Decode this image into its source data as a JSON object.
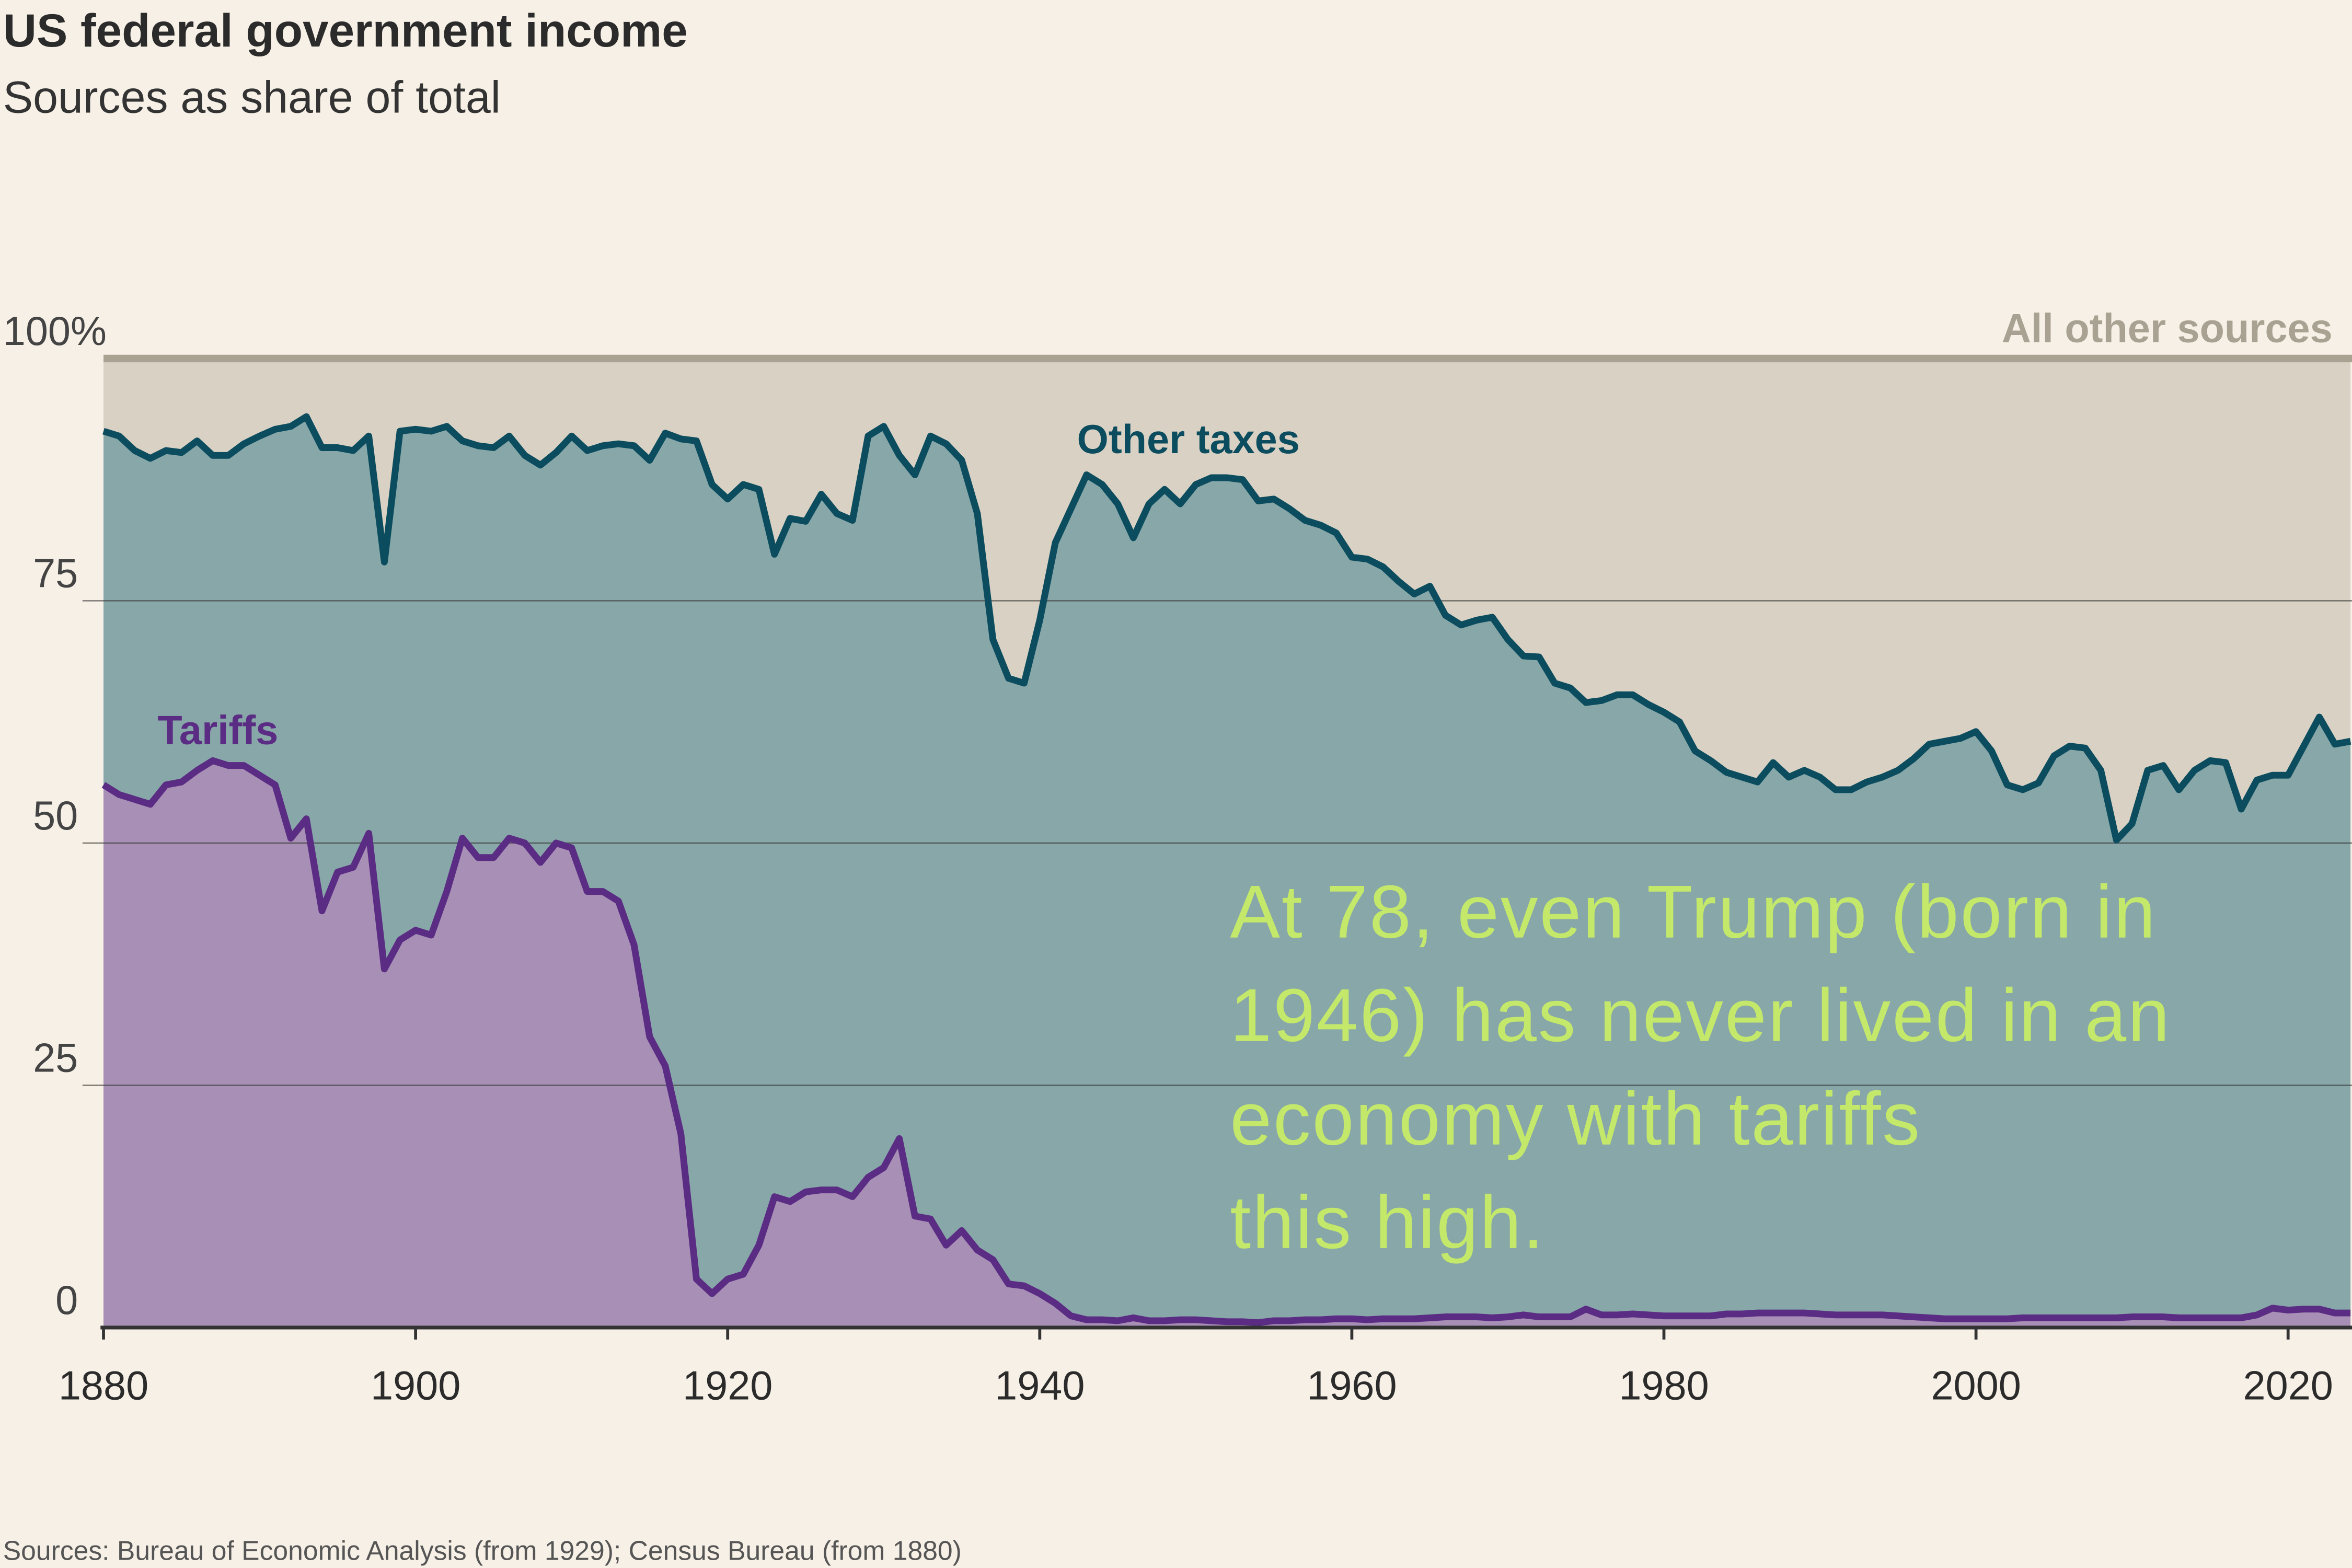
{
  "chart_data": {
    "type": "stacked-area",
    "title": "US federal government income",
    "subtitle": "Sources as share of total",
    "source": "Sources: Bureau of Economic Analysis (from 1929); Census Bureau (from 1880)",
    "annotation": [
      "At 78, even Trump (born in",
      "1946) has never lived in an",
      "economy with tariffs",
      "this high."
    ],
    "annotation_color": "#c4e96a",
    "xlim": [
      1880,
      2024
    ],
    "xticks": [
      1880,
      1900,
      1920,
      1940,
      1960,
      1980,
      2000,
      2020
    ],
    "ylim": [
      0,
      100
    ],
    "yticks": [
      0,
      25,
      50,
      75,
      {
        "value": 100,
        "label": "100%"
      }
    ],
    "grid": true,
    "remainder": {
      "name": "All other sources",
      "color": "#d9d1c3",
      "label_color": "#a9a292"
    },
    "x": [
      1880,
      1881,
      1882,
      1883,
      1884,
      1885,
      1886,
      1887,
      1888,
      1889,
      1890,
      1891,
      1892,
      1893,
      1894,
      1895,
      1896,
      1897,
      1898,
      1899,
      1900,
      1901,
      1902,
      1903,
      1904,
      1905,
      1906,
      1907,
      1908,
      1909,
      1910,
      1911,
      1912,
      1913,
      1914,
      1915,
      1916,
      1917,
      1918,
      1919,
      1920,
      1921,
      1922,
      1923,
      1924,
      1925,
      1926,
      1927,
      1928,
      1929,
      1930,
      1931,
      1932,
      1933,
      1934,
      1935,
      1936,
      1937,
      1938,
      1939,
      1940,
      1941,
      1942,
      1943,
      1944,
      1945,
      1946,
      1947,
      1948,
      1949,
      1950,
      1951,
      1952,
      1953,
      1954,
      1955,
      1956,
      1957,
      1958,
      1959,
      1960,
      1961,
      1962,
      1963,
      1964,
      1965,
      1966,
      1967,
      1968,
      1969,
      1970,
      1971,
      1972,
      1973,
      1974,
      1975,
      1976,
      1977,
      1978,
      1979,
      1980,
      1981,
      1982,
      1983,
      1984,
      1985,
      1986,
      1987,
      1988,
      1989,
      1990,
      1991,
      1992,
      1993,
      1994,
      1995,
      1996,
      1997,
      1998,
      1999,
      2000,
      2001,
      2002,
      2003,
      2004,
      2005,
      2006,
      2007,
      2008,
      2009,
      2010,
      2011,
      2012,
      2013,
      2014,
      2015,
      2016,
      2017,
      2018,
      2019,
      2020,
      2021,
      2022,
      2023,
      2024
    ],
    "series": [
      {
        "name": "Tariffs",
        "color": "#a78fb5",
        "line_color": "#5b2c83",
        "values": [
          56,
          55,
          54.5,
          54,
          56,
          56.3,
          57.5,
          58.5,
          58,
          58,
          57,
          56,
          50.5,
          52.5,
          43,
          47,
          47.5,
          51,
          37,
          40,
          41,
          40.5,
          45,
          50.5,
          48.5,
          48.5,
          50.5,
          50,
          48,
          50,
          49.5,
          45,
          45,
          44,
          39.5,
          30,
          27,
          20,
          5,
          3.5,
          5,
          5.5,
          8.5,
          13.5,
          13,
          14,
          14.2,
          14.2,
          13.5,
          15.5,
          16.5,
          19.5,
          11.5,
          11.2,
          8.5,
          10,
          8,
          7,
          4.5,
          4.3,
          3.5,
          2.5,
          1.2,
          0.8,
          0.8,
          0.7,
          1,
          0.7,
          0.7,
          0.8,
          0.8,
          0.7,
          0.6,
          0.6,
          0.5,
          0.7,
          0.7,
          0.8,
          0.8,
          0.9,
          0.9,
          0.8,
          0.9,
          0.9,
          0.9,
          1,
          1.1,
          1.1,
          1.1,
          1,
          1.1,
          1.3,
          1.1,
          1.1,
          1.1,
          1.9,
          1.3,
          1.3,
          1.4,
          1.3,
          1.2,
          1.2,
          1.2,
          1.2,
          1.4,
          1.4,
          1.5,
          1.5,
          1.5,
          1.5,
          1.4,
          1.3,
          1.3,
          1.3,
          1.3,
          1.2,
          1.1,
          1,
          0.9,
          0.9,
          0.9,
          0.9,
          0.9,
          1,
          1,
          1,
          1,
          1,
          1,
          1,
          1.1,
          1.1,
          1.1,
          1,
          1,
          1,
          1,
          1,
          1.3,
          2,
          1.8,
          1.9,
          1.9,
          1.5,
          1.5
        ]
      },
      {
        "name": "Other taxes",
        "color": "#88a7a9",
        "line_color": "#0b4c5e",
        "values": [
          36.5,
          37,
          36,
          35.7,
          34.5,
          34,
          34,
          31.5,
          32,
          33.2,
          35,
          36.7,
          42.5,
          41.5,
          47.8,
          43.8,
          43,
          41,
          42,
          52.5,
          51.7,
          52,
          48,
          41,
          42.5,
          42.3,
          41.5,
          40,
          41,
          40.3,
          42.5,
          45.5,
          46,
          47.2,
          51.5,
          59.5,
          65.3,
          71.7,
          86.5,
          83.5,
          80.5,
          81.5,
          78,
          66.3,
          70.5,
          69.2,
          71.8,
          69.8,
          69.8,
          76.5,
          76.5,
          70.5,
          76.5,
          80.8,
          82.7,
          79.5,
          76,
          64,
          62.5,
          62.2,
          69.5,
          78.5,
          83.3,
          87.2,
          86.2,
          84.3,
          80.5,
          84.3,
          85.8,
          84.2,
          86.2,
          87,
          87.1,
          86.9,
          84.8,
          84.8,
          83.8,
          82.5,
          82,
          81.1,
          78.6,
          78.5,
          77.6,
          76.1,
          74.8,
          75.5,
          72.4,
          71.4,
          71.9,
          72.3,
          69.9,
          68,
          68.1,
          65.4,
          64.9,
          62.6,
          63.4,
          64,
          63.9,
          63,
          62.3,
          61.3,
          58.3,
          57.3,
          55.9,
          55.4,
          54.8,
          56.8,
          55.3,
          56,
          55.4,
          54.2,
          54.2,
          55,
          55.5,
          56.3,
          57.6,
          59.2,
          59.6,
          59.9,
          60.6,
          58.6,
          55.1,
          54.5,
          55.2,
          58,
          59,
          58.8,
          56.5,
          49.3,
          50.9,
          56.4,
          56.9,
          54.5,
          56.5,
          57.5,
          57.3,
          52.5,
          55.2,
          55,
          55.2,
          58.1,
          61.1,
          58.7,
          59
        ]
      }
    ]
  }
}
